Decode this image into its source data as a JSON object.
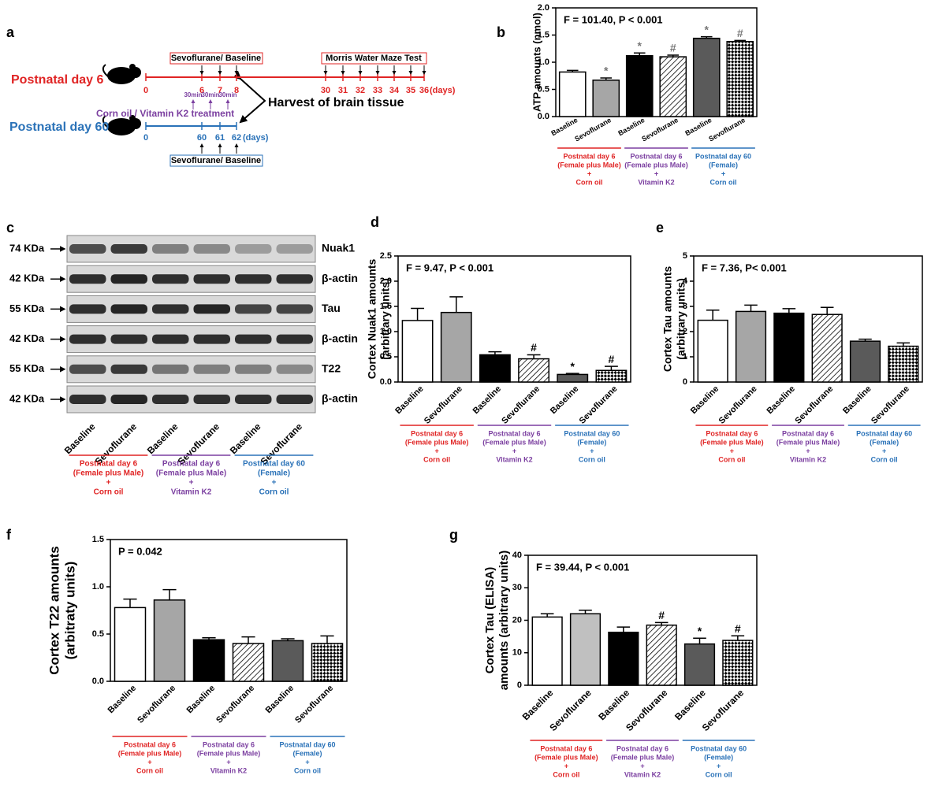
{
  "timeline": {
    "label": "a",
    "p6": {
      "name": "Postnatal day 6",
      "days": [
        0,
        6,
        7,
        8,
        30,
        31,
        32,
        33,
        34,
        35,
        36
      ],
      "unit": "(days)"
    },
    "p60": {
      "name": "Postnatal day 60",
      "days": [
        0,
        60,
        61,
        62
      ],
      "unit": "(days)"
    },
    "sevo_box_top": "Sevoflurane/ Baseline",
    "morris": "Morris Water Maze Test",
    "harvest": "Harvest of brain tissue",
    "treatment": "Corn oil / Vitamin K2 treatment",
    "durations": [
      "30min",
      "30min",
      "30min"
    ],
    "sevo_box_bottom": "Sevoflurane/ Baseline"
  },
  "blot": {
    "label": "c",
    "rows": [
      [
        "74 KDa",
        "Nuak1"
      ],
      [
        "42 KDa",
        "β-actin"
      ],
      [
        "55 KDa",
        "Tau"
      ],
      [
        "42 KDa",
        "β-actin"
      ],
      [
        "55 KDa",
        "T22"
      ],
      [
        "42 KDa",
        "β-actin"
      ]
    ],
    "lanes": [
      "Baseline",
      "Sevoflurane",
      "Baseline",
      "Sevoflurane",
      "Baseline",
      "Sevoflurane"
    ],
    "groups": [
      {
        "lines": [
          "Postnatal day 6",
          "(Female plus Male)",
          "+",
          "Corn oil"
        ],
        "color": "#e02424"
      },
      {
        "lines": [
          "Postnatal day 6",
          "(Female plus Male)",
          "+",
          "Vitamin K2"
        ],
        "color": "#7b3fa0"
      },
      {
        "lines": [
          "Postnatal day 60",
          "(Female)",
          "+",
          "Corn oil"
        ],
        "color": "#2a72b8"
      }
    ]
  },
  "chart_data": [
    {
      "type": "bar",
      "panel": "b",
      "annotation": "F = 101.40, P < 0.001",
      "ylabel": [
        "ATP amounts (nmol)"
      ],
      "categories": [
        "Baseline",
        "Sevoflurane",
        "Baseline",
        "Sevoflurane",
        "Baseline",
        "Sevoflurane"
      ],
      "values": [
        0.82,
        0.67,
        1.12,
        1.1,
        1.44,
        1.38
      ],
      "errors": [
        0.03,
        0.04,
        0.05,
        0.03,
        0.03,
        0.02
      ],
      "markers": [
        null,
        "*",
        "*",
        "#",
        "*",
        "#"
      ],
      "marker_color": "#777777",
      "colors": [
        "#ffffff",
        "#a6a6a6",
        "#000000",
        "#ffffff",
        "#5a5a5a",
        "#ffffff"
      ],
      "patterns": [
        null,
        null,
        null,
        "hatch",
        null,
        "checker"
      ],
      "ylim": [
        0,
        2
      ],
      "yticks": [
        {
          "value": 0,
          "label": "0.0"
        },
        0.5,
        {
          "value": 1,
          "label": "1.0"
        },
        1.5,
        {
          "value": 2,
          "label": "2.0"
        }
      ],
      "groups": [
        {
          "lines": [
            "Postnatal day 6",
            "(Female plus Male)",
            "+",
            "Corn oil"
          ],
          "color": "#e02424"
        },
        {
          "lines": [
            "Postnatal day 6",
            "(Female plus Male)",
            "+",
            "Vitamin K2"
          ],
          "color": "#7b3fa0"
        },
        {
          "lines": [
            "Postnatal day 60",
            "(Female)",
            "+",
            "Corn oil"
          ],
          "color": "#2a72b8"
        }
      ]
    },
    {
      "type": "bar",
      "panel": "d",
      "annotation": "F = 9.47, P < 0.001",
      "ylabel": [
        "Cortex Nuak1 amounts",
        "(arbitrary units)"
      ],
      "categories": [
        "Baseline",
        "Sevoflurane",
        "Baseline",
        "Sevoflurane",
        "Baseline",
        "Sevoflurane"
      ],
      "values": [
        1.22,
        1.38,
        0.54,
        0.46,
        0.15,
        0.23
      ],
      "errors": [
        0.24,
        0.31,
        0.06,
        0.08,
        0.02,
        0.08
      ],
      "markers": [
        null,
        null,
        null,
        "#",
        "*",
        "#"
      ],
      "marker_color": "#000000",
      "colors": [
        "#ffffff",
        "#a6a6a6",
        "#000000",
        "#ffffff",
        "#5a5a5a",
        "#ffffff"
      ],
      "patterns": [
        null,
        null,
        null,
        "hatch",
        null,
        "checker"
      ],
      "ylim": [
        0,
        2.5
      ],
      "yticks": [
        {
          "value": 0,
          "label": "0.0"
        },
        0.5,
        {
          "value": 1,
          "label": "1.0"
        },
        1.5,
        {
          "value": 2,
          "label": "2.0"
        },
        2.5
      ],
      "groups": [
        {
          "lines": [
            "Postnatal day 6",
            "(Female plus Male)",
            "+",
            "Corn oil"
          ],
          "color": "#e02424"
        },
        {
          "lines": [
            "Postnatal day 6",
            "(Female plus Male)",
            "+",
            "Vitamin K2"
          ],
          "color": "#7b3fa0"
        },
        {
          "lines": [
            "Postnatal day 60",
            "(Female)",
            "+",
            "Corn oil"
          ],
          "color": "#2a72b8"
        }
      ]
    },
    {
      "type": "bar",
      "panel": "e",
      "annotation": "F = 7.36, P< 0.001",
      "ylabel": [
        "Cortex Tau amounts",
        "(arbitrary units)"
      ],
      "categories": [
        "Baseline",
        "Sevoflurane",
        "Baseline",
        "Sevoflurane",
        "Baseline",
        "Sevoflurane"
      ],
      "values": [
        2.45,
        2.8,
        2.73,
        2.68,
        1.62,
        1.42
      ],
      "errors": [
        0.4,
        0.25,
        0.18,
        0.28,
        0.08,
        0.13
      ],
      "markers": [
        null,
        null,
        null,
        null,
        null,
        null
      ],
      "marker_color": "#000000",
      "colors": [
        "#ffffff",
        "#a6a6a6",
        "#000000",
        "#ffffff",
        "#5a5a5a",
        "#ffffff"
      ],
      "patterns": [
        null,
        null,
        null,
        "hatch",
        null,
        "checker"
      ],
      "ylim": [
        0,
        5
      ],
      "yticks": [
        0,
        1,
        2,
        3,
        4,
        5
      ],
      "groups": [
        {
          "lines": [
            "Postnatal day 6",
            "(Female plus Male)",
            "+",
            "Corn oil"
          ],
          "color": "#e02424"
        },
        {
          "lines": [
            "Postnatal day 6",
            "(Female plus Male)",
            "+",
            "Vitamin K2"
          ],
          "color": "#7b3fa0"
        },
        {
          "lines": [
            "Postnatal day 60",
            "(Female)",
            "+",
            "Corn oil"
          ],
          "color": "#2a72b8"
        }
      ]
    },
    {
      "type": "bar",
      "panel": "f",
      "annotation": "P = 0.042",
      "ylabel": [
        "Cortex T22 amounts",
        "(arbitraty units)"
      ],
      "categories": [
        "Baseline",
        "Sevoflurane",
        "Baseline",
        "Sevoflurane",
        "Baseline",
        "Sevoflurane"
      ],
      "values": [
        0.78,
        0.86,
        0.44,
        0.4,
        0.43,
        0.4
      ],
      "errors": [
        0.09,
        0.11,
        0.02,
        0.07,
        0.02,
        0.08
      ],
      "markers": [
        null,
        null,
        null,
        null,
        null,
        null
      ],
      "marker_color": "#000000",
      "colors": [
        "#ffffff",
        "#a6a6a6",
        "#000000",
        "#ffffff",
        "#5a5a5a",
        "#ffffff"
      ],
      "patterns": [
        null,
        null,
        null,
        "hatch",
        null,
        "checker"
      ],
      "ylim": [
        0,
        1.5
      ],
      "yticks": [
        {
          "value": 0,
          "label": "0.0"
        },
        0.5,
        {
          "value": 1,
          "label": "1.0"
        },
        1.5
      ],
      "groups": [
        {
          "lines": [
            "Postnatal day 6",
            "(Female plus Male)",
            "+",
            "Corn oil"
          ],
          "color": "#e02424"
        },
        {
          "lines": [
            "Postnatal day 6",
            "(Female plus Male)",
            "+",
            "Vitamin K2"
          ],
          "color": "#7b3fa0"
        },
        {
          "lines": [
            "Postnatal day 60",
            "(Female)",
            "+",
            "Corn oil"
          ],
          "color": "#2a72b8"
        }
      ]
    },
    {
      "type": "bar",
      "panel": "g",
      "annotation": "F = 39.44, P < 0.001",
      "ylabel": [
        "Cortex Tau (ELISA)",
        "amounts (arbitrary units)"
      ],
      "categories": [
        "Baseline",
        "Sevoflurane",
        "Baseline",
        "Sevoflurane",
        "Baseline",
        "Sevoflurane"
      ],
      "values": [
        21,
        22,
        16.3,
        18.5,
        12.7,
        13.8
      ],
      "errors": [
        1.0,
        1.1,
        1.6,
        0.8,
        1.8,
        1.4
      ],
      "markers": [
        null,
        null,
        null,
        "#",
        "*",
        "#"
      ],
      "marker_color": "#000000",
      "colors": [
        "#ffffff",
        "#c0c0c0",
        "#000000",
        "#ffffff",
        "#5a5a5a",
        "#ffffff"
      ],
      "patterns": [
        null,
        null,
        null,
        "hatch",
        null,
        "checker"
      ],
      "ylim": [
        0,
        40
      ],
      "yticks": [
        0,
        10,
        20,
        30,
        40
      ],
      "groups": [
        {
          "lines": [
            "Postnatal day 6",
            "(Female plus Male)",
            "+",
            "Corn oil"
          ],
          "color": "#e02424"
        },
        {
          "lines": [
            "Postnatal day 6",
            "(Female plus Male)",
            "+",
            "Vitamin K2"
          ],
          "color": "#7b3fa0"
        },
        {
          "lines": [
            "Postnatal day 60",
            "(Female)",
            "+",
            "Corn oil"
          ],
          "color": "#2a72b8"
        }
      ]
    }
  ]
}
